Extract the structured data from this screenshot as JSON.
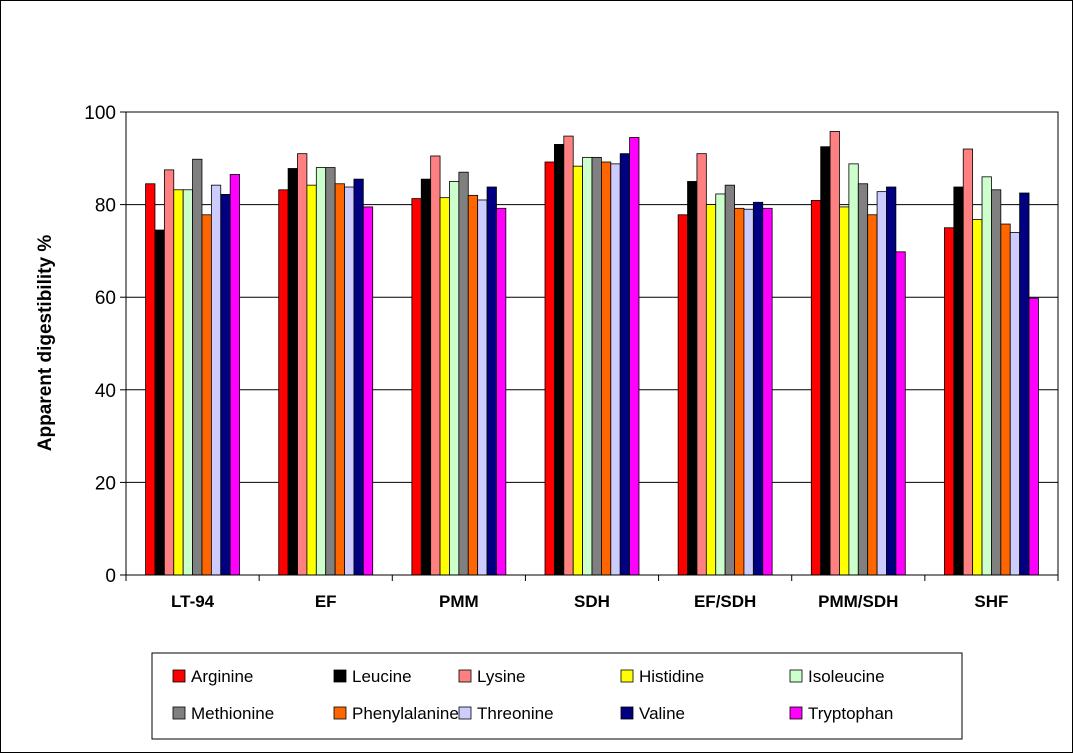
{
  "chart_data": {
    "type": "bar",
    "title": "",
    "xlabel": "",
    "ylabel": "Apparent digestibility %",
    "ylim": [
      0,
      100
    ],
    "yticks": [
      0,
      20,
      40,
      60,
      80,
      100
    ],
    "grid": "horizontal",
    "legend_position": "bottom",
    "categories": [
      "LT-94",
      "EF",
      "PMM",
      "SDH",
      "EF/SDH",
      "PMM/SDH",
      "SHF"
    ],
    "series": [
      {
        "name": "Arginine",
        "color": "#ff0000",
        "values": [
          84.5,
          83.2,
          81.3,
          89.2,
          77.8,
          80.9,
          75.0
        ]
      },
      {
        "name": "Leucine",
        "color": "#000000",
        "values": [
          74.5,
          87.8,
          85.5,
          93.0,
          85.0,
          92.5,
          83.8
        ]
      },
      {
        "name": "Lysine",
        "color": "#ff8080",
        "values": [
          87.5,
          91.0,
          90.5,
          94.8,
          91.0,
          95.8,
          92.0
        ]
      },
      {
        "name": "Histidine",
        "color": "#ffff00",
        "values": [
          83.2,
          84.2,
          81.5,
          88.3,
          80.0,
          79.5,
          76.8
        ]
      },
      {
        "name": "Isoleucine",
        "color": "#ccffcc",
        "values": [
          83.2,
          88.0,
          85.0,
          90.2,
          82.3,
          88.8,
          86.0
        ]
      },
      {
        "name": "Methionine",
        "color": "#808080",
        "values": [
          89.8,
          88.0,
          87.0,
          90.2,
          84.2,
          84.5,
          83.2
        ]
      },
      {
        "name": "Phenylalanine",
        "color": "#ff6600",
        "values": [
          77.8,
          84.5,
          82.0,
          89.2,
          79.2,
          77.8,
          75.8
        ]
      },
      {
        "name": "Threonine",
        "color": "#ccccff",
        "values": [
          84.2,
          83.8,
          81.0,
          88.8,
          79.0,
          82.8,
          74.0
        ]
      },
      {
        "name": "Valine",
        "color": "#000080",
        "values": [
          82.2,
          85.5,
          83.8,
          91.0,
          80.5,
          83.8,
          82.5
        ]
      },
      {
        "name": "Tryptophan",
        "color": "#ff00ff",
        "values": [
          86.5,
          79.5,
          79.2,
          94.5,
          79.2,
          69.8,
          59.8
        ]
      }
    ]
  }
}
